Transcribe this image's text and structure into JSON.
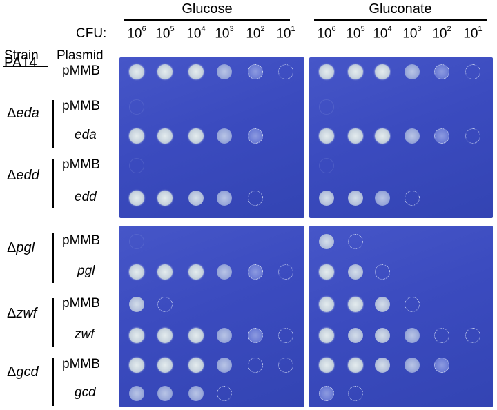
{
  "headers": {
    "glucose": "Glucose",
    "gluconate": "Gluconate",
    "cfu_label": "CFU:",
    "strain": "Strain",
    "plasmid": "Plasmid"
  },
  "cfu_ticks": [
    {
      "base": "10",
      "exp": "6"
    },
    {
      "base": "10",
      "exp": "5"
    },
    {
      "base": "10",
      "exp": "4"
    },
    {
      "base": "10",
      "exp": "3"
    },
    {
      "base": "10",
      "exp": "2"
    },
    {
      "base": "10",
      "exp": "1"
    }
  ],
  "strains": [
    {
      "prefix": "",
      "name": "PA14",
      "italic": false
    },
    {
      "prefix": "Δ",
      "name": "eda",
      "italic": true
    },
    {
      "prefix": "Δ",
      "name": "edd",
      "italic": true
    },
    {
      "prefix": "Δ",
      "name": "pgl",
      "italic": true
    },
    {
      "prefix": "Δ",
      "name": "zwf",
      "italic": true
    },
    {
      "prefix": "Δ",
      "name": "gcd",
      "italic": true
    }
  ],
  "rows": [
    {
      "plasmid": "pMMB",
      "italic": false,
      "glucose": [
        5,
        5,
        5,
        3,
        2,
        1
      ],
      "gluconate": [
        5,
        5,
        5,
        3,
        2,
        1
      ]
    },
    {
      "plasmid": "pMMB",
      "italic": false,
      "glucose": [
        0,
        0,
        0,
        0,
        0,
        0
      ],
      "gluconate": [
        0,
        0,
        0,
        0,
        0,
        0
      ]
    },
    {
      "plasmid": "eda",
      "italic": true,
      "glucose": [
        5,
        5,
        5,
        3,
        2,
        0
      ],
      "gluconate": [
        5,
        5,
        5,
        3,
        2,
        1
      ]
    },
    {
      "plasmid": "pMMB",
      "italic": false,
      "glucose": [
        0,
        0,
        0,
        0,
        0,
        0
      ],
      "gluconate": [
        0,
        0,
        0,
        0,
        0,
        0
      ]
    },
    {
      "plasmid": "edd",
      "italic": true,
      "glucose": [
        5,
        5,
        4,
        3,
        1,
        0
      ],
      "gluconate": [
        4,
        4,
        3,
        1,
        0,
        0
      ]
    },
    {
      "plasmid": "pMMB",
      "italic": false,
      "glucose": [
        0,
        0,
        0,
        0,
        0,
        0
      ],
      "gluconate": [
        4,
        1,
        0,
        0,
        0,
        0
      ]
    },
    {
      "plasmid": "pgl",
      "italic": true,
      "glucose": [
        5,
        5,
        5,
        3,
        2,
        1
      ],
      "gluconate": [
        5,
        4,
        1,
        0,
        0,
        0
      ]
    },
    {
      "plasmid": "pMMB",
      "italic": false,
      "glucose": [
        4,
        1,
        0,
        0,
        0,
        0
      ],
      "gluconate": [
        5,
        5,
        4,
        1,
        0,
        0
      ]
    },
    {
      "plasmid": "zwf",
      "italic": true,
      "glucose": [
        5,
        5,
        5,
        3,
        2,
        1
      ],
      "gluconate": [
        5,
        4,
        4,
        3,
        1,
        1
      ]
    },
    {
      "plasmid": "pMMB",
      "italic": false,
      "glucose": [
        5,
        5,
        5,
        3,
        1,
        1
      ],
      "gluconate": [
        5,
        5,
        4,
        3,
        2,
        0
      ]
    },
    {
      "plasmid": "gcd",
      "italic": true,
      "glucose": [
        3,
        3,
        3,
        1,
        0,
        0
      ],
      "gluconate": [
        2,
        1,
        0,
        0,
        0,
        0
      ]
    }
  ]
}
